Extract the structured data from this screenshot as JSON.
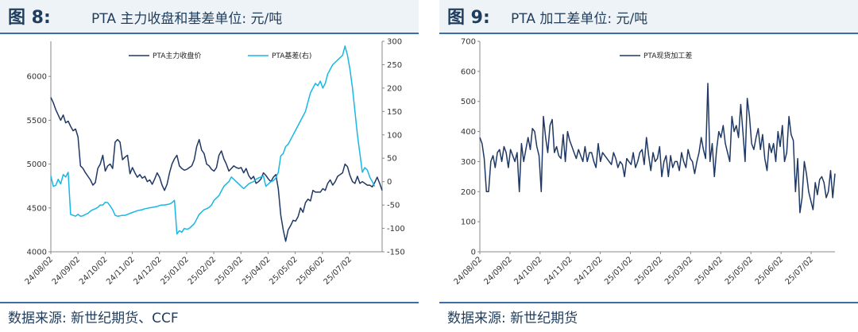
{
  "left": {
    "figure_label": "图 8:",
    "title": "PTA 主力收盘和基差单位:  元/吨",
    "source": "数据来源:  新世纪期货、CCF"
  },
  "right": {
    "figure_label": "图 9:",
    "title": "PTA 加工差单位:  元/吨",
    "source": "数据来源:  新世纪期货"
  },
  "colors": {
    "price": "#1f3864",
    "basis": "#18b7e6",
    "spread": "#1f3864",
    "rule": "#3a6fa8",
    "title_text": "#1f3d5c"
  },
  "chart_data": [
    {
      "type": "line",
      "title": "PTA 主力收盘和基差单位:  元/吨",
      "x_tick_labels": [
        "24/08/02",
        "24/09/02",
        "24/10/02",
        "24/11/02",
        "24/12/02",
        "25/01/02",
        "25/02/02",
        "25/03/02",
        "25/04/02",
        "25/05/02",
        "25/06/02",
        "25/07/02"
      ],
      "y_left": {
        "min": 4000,
        "max": 6400,
        "ticks": [
          4000,
          4500,
          5000,
          5500,
          6000
        ]
      },
      "y_right": {
        "min": -150,
        "max": 300,
        "ticks": [
          -150,
          -100,
          -50,
          0,
          50,
          100,
          150,
          200,
          250,
          300
        ]
      },
      "grid": false,
      "legend_position": "top",
      "series": [
        {
          "name": "PTA主力收盘价",
          "axis": "left",
          "values": [
            5760,
            5700,
            5620,
            5560,
            5500,
            5560,
            5470,
            5490,
            5430,
            5380,
            5400,
            5310,
            4980,
            4950,
            4900,
            4860,
            4820,
            4760,
            4790,
            4950,
            5000,
            5100,
            4920,
            4980,
            5000,
            4950,
            5250,
            5280,
            5250,
            5050,
            5080,
            5100,
            4890,
            4960,
            4900,
            4850,
            4880,
            4840,
            4860,
            4800,
            4820,
            4770,
            4830,
            4900,
            4850,
            4760,
            4700,
            4770,
            4900,
            5000,
            5060,
            5100,
            4980,
            4950,
            4930,
            4940,
            4960,
            4980,
            5050,
            5200,
            5280,
            5160,
            5120,
            5000,
            4980,
            4940,
            4920,
            4960,
            5100,
            5150,
            5060,
            5000,
            4920,
            4950,
            4980,
            4960,
            4950,
            4960,
            4900,
            4950,
            4870,
            4830,
            4860,
            4780,
            4800,
            4830,
            4900,
            4870,
            4830,
            4800,
            4850,
            4880,
            4720,
            4420,
            4250,
            4120,
            4250,
            4300,
            4360,
            4350,
            4400,
            4500,
            4450,
            4560,
            4600,
            4580,
            4700,
            4680,
            4680,
            4680,
            4720,
            4700,
            4780,
            4820,
            4760,
            4800,
            4860,
            4880,
            4900,
            5000,
            4970,
            4870,
            4800,
            4780,
            4860,
            4780,
            4800,
            4780,
            4760,
            4760,
            4740,
            4790,
            4850,
            4780,
            4700
          ]
        },
        {
          "name": "PTA基差(右)",
          "axis": "right",
          "values": [
            12,
            -10,
            -8,
            5,
            -5,
            15,
            10,
            20,
            -70,
            -72,
            -74,
            -70,
            -74,
            -73,
            -70,
            -68,
            -63,
            -60,
            -58,
            -55,
            -50,
            -50,
            -44,
            -45,
            -52,
            -60,
            -72,
            -74,
            -73,
            -72,
            -72,
            -70,
            -68,
            -66,
            -64,
            -62,
            -61,
            -60,
            -58,
            -57,
            -56,
            -55,
            -54,
            -53,
            -51,
            -50,
            -50,
            -49,
            -48,
            -45,
            -40,
            -112,
            -105,
            -108,
            -100,
            -102,
            -100,
            -95,
            -90,
            -80,
            -70,
            -65,
            -60,
            -58,
            -55,
            -50,
            -40,
            -35,
            -30,
            -20,
            -10,
            -5,
            0,
            10,
            5,
            0,
            -5,
            -10,
            -15,
            -10,
            -5,
            -2,
            0,
            5,
            8,
            10,
            12,
            -10,
            -5,
            0,
            2,
            8,
            20,
            55,
            60,
            75,
            80,
            90,
            100,
            110,
            120,
            130,
            140,
            150,
            170,
            190,
            200,
            210,
            205,
            215,
            200,
            210,
            230,
            240,
            250,
            255,
            260,
            265,
            270,
            290,
            270,
            240,
            200,
            150,
            100,
            60,
            20,
            30,
            25,
            10,
            0,
            -10
          ]
        }
      ]
    },
    {
      "type": "line",
      "title": "PTA 加工差单位:  元/吨",
      "x_tick_labels": [
        "24/08/02",
        "24/09/02",
        "24/10/02",
        "24/11/02",
        "24/12/02",
        "25/01/02",
        "25/02/02",
        "25/03/02",
        "25/04/02",
        "25/05/02",
        "25/06/02",
        "25/07/02"
      ],
      "y_left": {
        "min": 0,
        "max": 700,
        "ticks": [
          0,
          100,
          200,
          300,
          400,
          500,
          600,
          700
        ]
      },
      "grid": false,
      "legend_position": "top",
      "series": [
        {
          "name": "PTA现货加工差",
          "axis": "left",
          "values": [
            380,
            360,
            310,
            200,
            200,
            300,
            320,
            280,
            330,
            340,
            300,
            350,
            330,
            280,
            340,
            320,
            300,
            330,
            200,
            360,
            300,
            340,
            380,
            340,
            410,
            400,
            350,
            320,
            200,
            450,
            380,
            330,
            420,
            440,
            330,
            350,
            320,
            310,
            390,
            300,
            400,
            370,
            350,
            330,
            310,
            340,
            320,
            300,
            350,
            300,
            330,
            330,
            300,
            280,
            360,
            300,
            330,
            320,
            310,
            300,
            290,
            330,
            310,
            280,
            300,
            290,
            250,
            310,
            300,
            290,
            330,
            280,
            300,
            330,
            340,
            290,
            380,
            320,
            270,
            330,
            300,
            310,
            350,
            250,
            300,
            320,
            250,
            320,
            280,
            300,
            300,
            270,
            330,
            300,
            280,
            340,
            310,
            300,
            260,
            300,
            330,
            380,
            340,
            310,
            560,
            300,
            360,
            250,
            340,
            400,
            380,
            420,
            360,
            330,
            300,
            450,
            400,
            420,
            380,
            490,
            400,
            300,
            510,
            450,
            360,
            340,
            380,
            410,
            340,
            390,
            310,
            270,
            360,
            330,
            360,
            300,
            400,
            350,
            420,
            300,
            330,
            450,
            390,
            370,
            200,
            310,
            130,
            180,
            300,
            260,
            200,
            170,
            140,
            230,
            190,
            240,
            250,
            230,
            180,
            200,
            270,
            180,
            260
          ]
        }
      ]
    }
  ]
}
